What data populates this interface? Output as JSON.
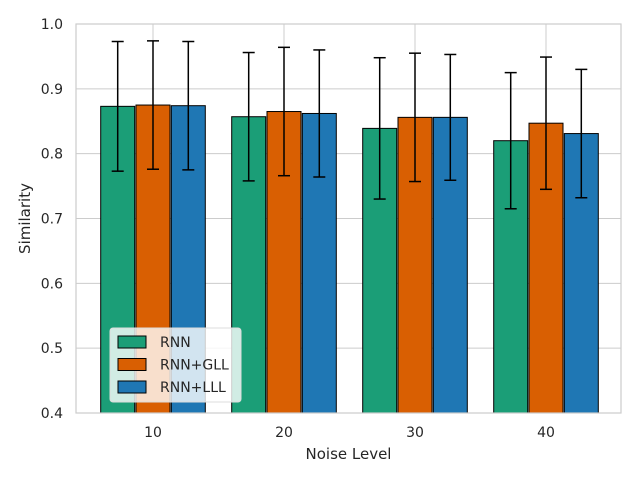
{
  "chart_data": {
    "type": "bar",
    "title": "",
    "xlabel": "Noise Level",
    "ylabel": "Similarity",
    "categories": [
      "10",
      "20",
      "30",
      "40"
    ],
    "ylim": [
      0.4,
      1.0
    ],
    "yticks": [
      "0.4",
      "0.5",
      "0.6",
      "0.7",
      "0.8",
      "0.9",
      "1.0"
    ],
    "grid": true,
    "legend_position": "bottom-left",
    "series": [
      {
        "name": "RNN",
        "color": "#1b9e77",
        "values": [
          0.873,
          0.857,
          0.839,
          0.82
        ],
        "errors": [
          0.1,
          0.099,
          0.109,
          0.105
        ]
      },
      {
        "name": "RNN+GLL",
        "color": "#d95f02",
        "values": [
          0.875,
          0.865,
          0.856,
          0.847
        ],
        "errors": [
          0.099,
          0.099,
          0.099,
          0.102
        ]
      },
      {
        "name": "RNN+LLL",
        "color": "#1f77b4",
        "values": [
          0.874,
          0.862,
          0.856,
          0.831
        ],
        "errors": [
          0.099,
          0.098,
          0.097,
          0.099
        ]
      }
    ]
  }
}
